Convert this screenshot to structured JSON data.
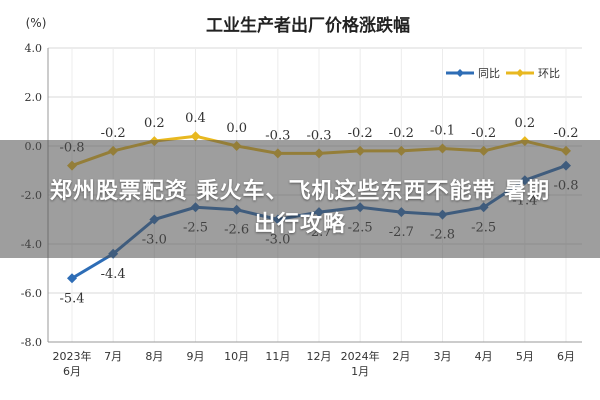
{
  "chart_data": {
    "type": "line",
    "title": "工业生产者出厂价格涨跌幅",
    "y_unit": "(%)",
    "ylim": [
      -8.0,
      4.0
    ],
    "yticks": [
      "4.0",
      "2.0",
      "0.0",
      "-2.0",
      "-4.0",
      "-6.0",
      "-8.0"
    ],
    "grid": true,
    "legend_position": "top-right",
    "categories": [
      [
        "2023年",
        "6月"
      ],
      [
        "7月"
      ],
      [
        "8月"
      ],
      [
        "9月"
      ],
      [
        "10月"
      ],
      [
        "11月"
      ],
      [
        "12月"
      ],
      [
        "2024年",
        "1月"
      ],
      [
        "2月"
      ],
      [
        "3月"
      ],
      [
        "4月"
      ],
      [
        "5月"
      ],
      [
        "6月"
      ]
    ],
    "series": [
      {
        "name": "同比",
        "color": "#2e6db6",
        "values": [
          -5.4,
          -4.4,
          -3.0,
          -2.5,
          -2.6,
          -3.0,
          -2.7,
          -2.5,
          -2.7,
          -2.8,
          -2.5,
          -1.4,
          -0.8
        ],
        "labels": [
          "-5.4",
          "-4.4",
          "-3.0",
          "-2.5",
          "-2.6",
          "-3.0",
          "-2.7",
          "-2.5",
          "-2.7",
          "-2.8",
          "-2.5",
          "-1.4",
          "-0.8"
        ]
      },
      {
        "name": "环比",
        "color": "#e8b820",
        "values": [
          -0.8,
          -0.2,
          0.2,
          0.4,
          0.0,
          -0.3,
          -0.3,
          -0.2,
          -0.2,
          -0.1,
          -0.2,
          0.2,
          -0.2
        ],
        "labels": [
          "-0.8",
          "-0.2",
          "0.2",
          "0.4",
          "0.0",
          "-0.3",
          "-0.3",
          "-0.2",
          "-0.2",
          "-0.1",
          "-0.2",
          "0.2",
          "-0.2"
        ]
      }
    ]
  },
  "overlay": {
    "line1": "郑州股票配资 乘火车、飞机这些东西不能带 暑期",
    "line2": "出行攻略"
  }
}
